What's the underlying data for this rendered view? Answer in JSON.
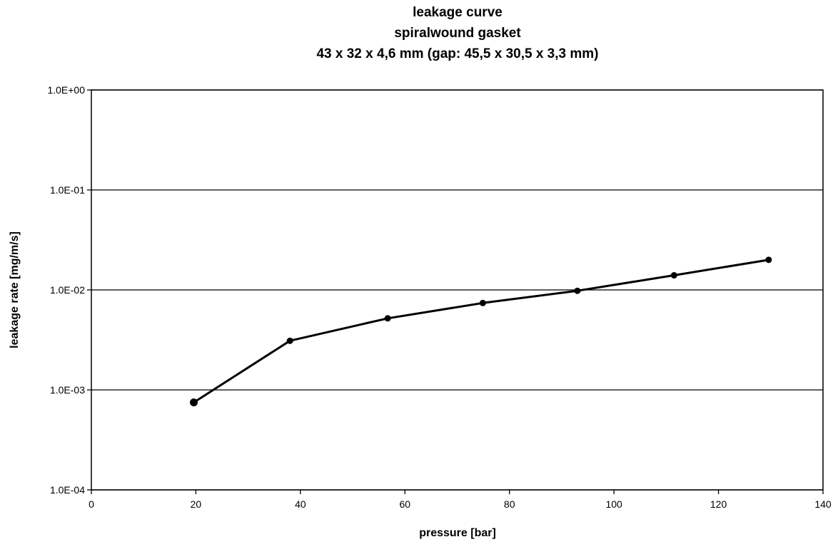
{
  "chart_data": {
    "type": "line",
    "title_lines": [
      "leakage curve",
      "spiralwound gasket",
      "43 x 32 x 4,6 mm  (gap: 45,5 x 30,5 x 3,3 mm)"
    ],
    "xlabel": "pressure [bar]",
    "ylabel": "leakage rate [mg/m/s]",
    "xlim": [
      0,
      140
    ],
    "ylim": [
      0.0001,
      1
    ],
    "y_scale": "log",
    "x_ticks": [
      0,
      20,
      40,
      60,
      80,
      100,
      120,
      140
    ],
    "x_tick_labels": [
      "0",
      "20",
      "40",
      "60",
      "80",
      "100",
      "120",
      "140"
    ],
    "y_ticks": [
      0.0001,
      0.001,
      0.01,
      0.1,
      1
    ],
    "y_tick_labels": [
      "1.0E-04",
      "1.0E-03",
      "1.0E-02",
      "1.0E-01",
      "1.0E+00"
    ],
    "grid": "horizontal",
    "legend": "none",
    "series": [
      {
        "x": [
          19.6,
          38,
          56.7,
          74.9,
          93,
          111.5,
          129.6
        ],
        "y": [
          0.00075,
          0.0031,
          0.0052,
          0.0074,
          0.0098,
          0.014,
          0.02
        ],
        "color": "#000000",
        "marker": "circle"
      }
    ]
  }
}
